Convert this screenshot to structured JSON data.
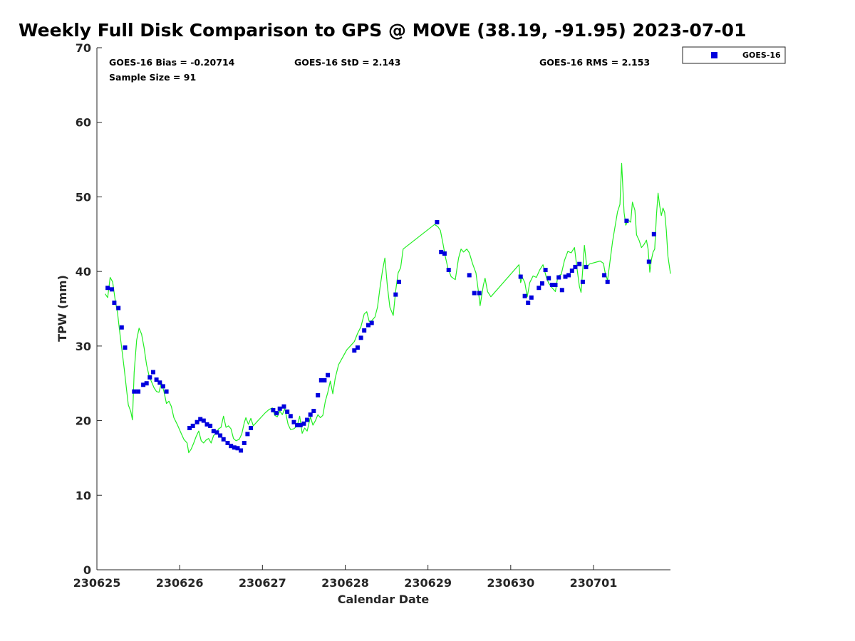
{
  "title": "Weekly Full Disk Comparison to GPS @ MOVE (38.19, -91.95) 2023-07-01",
  "stats": {
    "bias": "GOES-16 Bias = -0.20714",
    "std": "GOES-16 StD = 2.143",
    "rms": "GOES-16 RMS = 2.153",
    "sample": "Sample Size = 91"
  },
  "legend": {
    "label": "GOES-16"
  },
  "colors": {
    "goes": "#0000dd",
    "gps": "#22ee22",
    "axis": "#262626"
  },
  "chart_data": {
    "type": "scatter",
    "xlabel": "Calendar Date",
    "ylabel": "TPW (mm)",
    "xlim": [
      0,
      6.93
    ],
    "ylim": [
      0,
      70
    ],
    "x_tick_values": [
      0,
      1,
      2,
      3,
      4,
      5,
      6
    ],
    "x_tick_labels": [
      "230625",
      "230626",
      "230627",
      "230628",
      "230629",
      "230630",
      "230701"
    ],
    "y_ticks": [
      0,
      10,
      20,
      30,
      40,
      50,
      60,
      70
    ],
    "grid": false,
    "legend_position": "top-right",
    "series": [
      {
        "name": "GOES-16",
        "style": "markers",
        "points": [
          [
            0.13,
            37.8
          ],
          [
            0.18,
            37.6
          ],
          [
            0.21,
            35.8
          ],
          [
            0.26,
            35.1
          ],
          [
            0.3,
            32.5
          ],
          [
            0.34,
            29.8
          ],
          [
            0.45,
            23.9
          ],
          [
            0.5,
            23.9
          ],
          [
            0.56,
            24.8
          ],
          [
            0.6,
            25.0
          ],
          [
            0.64,
            25.8
          ],
          [
            0.68,
            26.5
          ],
          [
            0.72,
            25.5
          ],
          [
            0.76,
            25.1
          ],
          [
            0.8,
            24.6
          ],
          [
            0.84,
            23.9
          ],
          [
            1.12,
            19.0
          ],
          [
            1.16,
            19.3
          ],
          [
            1.21,
            19.8
          ],
          [
            1.25,
            20.2
          ],
          [
            1.29,
            20.0
          ],
          [
            1.33,
            19.5
          ],
          [
            1.37,
            19.3
          ],
          [
            1.41,
            18.6
          ],
          [
            1.45,
            18.4
          ],
          [
            1.49,
            18.0
          ],
          [
            1.53,
            17.5
          ],
          [
            1.58,
            17.0
          ],
          [
            1.62,
            16.6
          ],
          [
            1.66,
            16.4
          ],
          [
            1.7,
            16.3
          ],
          [
            1.74,
            16.0
          ],
          [
            1.78,
            17.0
          ],
          [
            1.82,
            18.2
          ],
          [
            1.86,
            19.0
          ],
          [
            2.13,
            21.4
          ],
          [
            2.17,
            21.0
          ],
          [
            2.21,
            21.6
          ],
          [
            2.26,
            21.9
          ],
          [
            2.3,
            21.2
          ],
          [
            2.34,
            20.6
          ],
          [
            2.38,
            19.8
          ],
          [
            2.42,
            19.4
          ],
          [
            2.46,
            19.4
          ],
          [
            2.5,
            19.6
          ],
          [
            2.54,
            20.1
          ],
          [
            2.58,
            20.8
          ],
          [
            2.62,
            21.3
          ],
          [
            2.67,
            23.4
          ],
          [
            2.71,
            25.4
          ],
          [
            2.75,
            25.4
          ],
          [
            2.79,
            26.1
          ],
          [
            3.11,
            29.4
          ],
          [
            3.15,
            29.8
          ],
          [
            3.19,
            31.1
          ],
          [
            3.23,
            32.1
          ],
          [
            3.28,
            32.8
          ],
          [
            3.32,
            33.1
          ],
          [
            3.61,
            36.9
          ],
          [
            3.65,
            38.6
          ],
          [
            4.11,
            46.6
          ],
          [
            4.16,
            42.6
          ],
          [
            4.2,
            42.4
          ],
          [
            4.25,
            40.2
          ],
          [
            4.5,
            39.5
          ],
          [
            4.56,
            37.1
          ],
          [
            4.62,
            37.1
          ],
          [
            5.12,
            39.3
          ],
          [
            5.17,
            36.7
          ],
          [
            5.21,
            35.8
          ],
          [
            5.25,
            36.5
          ],
          [
            5.34,
            37.8
          ],
          [
            5.38,
            38.4
          ],
          [
            5.42,
            40.2
          ],
          [
            5.46,
            39.1
          ],
          [
            5.5,
            38.2
          ],
          [
            5.54,
            38.2
          ],
          [
            5.58,
            39.2
          ],
          [
            5.62,
            37.5
          ],
          [
            5.66,
            39.3
          ],
          [
            5.7,
            39.5
          ],
          [
            5.74,
            40.1
          ],
          [
            5.78,
            40.6
          ],
          [
            5.83,
            41.0
          ],
          [
            5.87,
            38.6
          ],
          [
            5.91,
            40.6
          ],
          [
            6.13,
            39.5
          ],
          [
            6.17,
            38.6
          ],
          [
            6.4,
            46.8
          ],
          [
            6.67,
            41.3
          ],
          [
            6.73,
            45.0
          ]
        ]
      },
      {
        "name": "",
        "style": "line",
        "points": [
          [
            0.1,
            37.0
          ],
          [
            0.13,
            36.5
          ],
          [
            0.16,
            39.2
          ],
          [
            0.19,
            38.6
          ],
          [
            0.22,
            36.2
          ],
          [
            0.25,
            34.4
          ],
          [
            0.28,
            31.5
          ],
          [
            0.31,
            28.8
          ],
          [
            0.33,
            27.0
          ],
          [
            0.36,
            24.0
          ],
          [
            0.38,
            22.1
          ],
          [
            0.41,
            21.2
          ],
          [
            0.43,
            20.1
          ],
          [
            0.45,
            26.5
          ],
          [
            0.48,
            30.8
          ],
          [
            0.51,
            32.4
          ],
          [
            0.54,
            31.6
          ],
          [
            0.57,
            29.8
          ],
          [
            0.6,
            27.5
          ],
          [
            0.63,
            26.0
          ],
          [
            0.66,
            25.2
          ],
          [
            0.69,
            24.4
          ],
          [
            0.72,
            23.9
          ],
          [
            0.75,
            23.8
          ],
          [
            0.78,
            25.1
          ],
          [
            0.81,
            23.9
          ],
          [
            0.84,
            22.3
          ],
          [
            0.87,
            22.6
          ],
          [
            0.9,
            21.9
          ],
          [
            0.93,
            20.4
          ],
          [
            0.97,
            19.5
          ],
          [
            1.01,
            18.5
          ],
          [
            1.05,
            17.5
          ],
          [
            1.09,
            17.0
          ],
          [
            1.11,
            15.7
          ],
          [
            1.14,
            16.2
          ],
          [
            1.17,
            17.0
          ],
          [
            1.2,
            17.9
          ],
          [
            1.23,
            18.6
          ],
          [
            1.26,
            17.3
          ],
          [
            1.29,
            17.0
          ],
          [
            1.32,
            17.4
          ],
          [
            1.35,
            17.6
          ],
          [
            1.38,
            17.0
          ],
          [
            1.41,
            18.0
          ],
          [
            1.44,
            18.3
          ],
          [
            1.47,
            18.9
          ],
          [
            1.5,
            19.1
          ],
          [
            1.53,
            20.6
          ],
          [
            1.56,
            19.1
          ],
          [
            1.59,
            19.3
          ],
          [
            1.62,
            18.9
          ],
          [
            1.65,
            17.6
          ],
          [
            1.68,
            17.3
          ],
          [
            1.72,
            17.5
          ],
          [
            1.75,
            18.2
          ],
          [
            1.78,
            19.7
          ],
          [
            1.8,
            20.4
          ],
          [
            1.83,
            19.5
          ],
          [
            1.86,
            20.3
          ],
          [
            1.89,
            19.3
          ],
          [
            1.93,
            19.8
          ],
          [
            1.98,
            20.4
          ],
          [
            2.03,
            21.0
          ],
          [
            2.08,
            21.5
          ],
          [
            2.12,
            21.7
          ],
          [
            2.15,
            20.7
          ],
          [
            2.18,
            20.5
          ],
          [
            2.21,
            21.3
          ],
          [
            2.24,
            20.8
          ],
          [
            2.27,
            21.6
          ],
          [
            2.31,
            19.5
          ],
          [
            2.34,
            18.8
          ],
          [
            2.38,
            18.9
          ],
          [
            2.42,
            19.3
          ],
          [
            2.45,
            20.6
          ],
          [
            2.48,
            18.3
          ],
          [
            2.51,
            19.0
          ],
          [
            2.54,
            18.6
          ],
          [
            2.58,
            20.5
          ],
          [
            2.61,
            19.4
          ],
          [
            2.64,
            20.0
          ],
          [
            2.67,
            20.8
          ],
          [
            2.7,
            20.4
          ],
          [
            2.73,
            20.7
          ],
          [
            2.76,
            22.6
          ],
          [
            2.79,
            23.8
          ],
          [
            2.82,
            25.3
          ],
          [
            2.85,
            23.6
          ],
          [
            2.88,
            25.7
          ],
          [
            2.92,
            27.5
          ],
          [
            2.97,
            28.5
          ],
          [
            3.02,
            29.5
          ],
          [
            3.07,
            30.1
          ],
          [
            3.11,
            30.6
          ],
          [
            3.15,
            31.7
          ],
          [
            3.19,
            32.6
          ],
          [
            3.23,
            34.3
          ],
          [
            3.26,
            34.6
          ],
          [
            3.29,
            33.3
          ],
          [
            3.32,
            33.4
          ],
          [
            3.36,
            33.9
          ],
          [
            3.39,
            35.2
          ],
          [
            3.42,
            37.8
          ],
          [
            3.45,
            40.1
          ],
          [
            3.48,
            41.8
          ],
          [
            3.51,
            38.0
          ],
          [
            3.54,
            35.2
          ],
          [
            3.58,
            34.1
          ],
          [
            3.61,
            37.4
          ],
          [
            3.64,
            39.8
          ],
          [
            3.67,
            40.5
          ],
          [
            3.7,
            43.0
          ],
          [
            4.08,
            46.3
          ],
          [
            4.12,
            46.0
          ],
          [
            4.15,
            45.5
          ],
          [
            4.18,
            43.8
          ],
          [
            4.21,
            42.0
          ],
          [
            4.24,
            40.5
          ],
          [
            4.28,
            39.3
          ],
          [
            4.33,
            38.9
          ],
          [
            4.37,
            41.8
          ],
          [
            4.4,
            43.0
          ],
          [
            4.43,
            42.6
          ],
          [
            4.47,
            43.0
          ],
          [
            4.5,
            42.5
          ],
          [
            4.54,
            41.0
          ],
          [
            4.58,
            39.8
          ],
          [
            4.61,
            37.3
          ],
          [
            4.63,
            35.4
          ],
          [
            4.67,
            38.2
          ],
          [
            4.69,
            39.1
          ],
          [
            4.72,
            37.3
          ],
          [
            4.76,
            36.6
          ],
          [
            5.1,
            40.9
          ],
          [
            5.12,
            38.5
          ],
          [
            5.14,
            39.2
          ],
          [
            5.17,
            38.5
          ],
          [
            5.2,
            36.6
          ],
          [
            5.23,
            38.5
          ],
          [
            5.27,
            39.4
          ],
          [
            5.31,
            39.2
          ],
          [
            5.35,
            40.2
          ],
          [
            5.39,
            40.9
          ],
          [
            5.43,
            39.2
          ],
          [
            5.46,
            38.4
          ],
          [
            5.5,
            37.8
          ],
          [
            5.54,
            37.3
          ],
          [
            5.57,
            39.4
          ],
          [
            5.61,
            39.6
          ],
          [
            5.65,
            41.5
          ],
          [
            5.69,
            42.7
          ],
          [
            5.73,
            42.5
          ],
          [
            5.77,
            43.2
          ],
          [
            5.8,
            40.5
          ],
          [
            5.83,
            38.0
          ],
          [
            5.85,
            37.2
          ],
          [
            5.87,
            40.3
          ],
          [
            5.89,
            43.5
          ],
          [
            5.92,
            40.5
          ],
          [
            5.95,
            41.0
          ],
          [
            6.08,
            41.4
          ],
          [
            6.12,
            41.1
          ],
          [
            6.14,
            39.9
          ],
          [
            6.17,
            38.8
          ],
          [
            6.2,
            41.4
          ],
          [
            6.23,
            44.0
          ],
          [
            6.26,
            46.0
          ],
          [
            6.29,
            48.0
          ],
          [
            6.32,
            49.0
          ],
          [
            6.34,
            54.5
          ],
          [
            6.37,
            47.9
          ],
          [
            6.39,
            46.2
          ],
          [
            6.42,
            46.9
          ],
          [
            6.45,
            46.6
          ],
          [
            6.47,
            49.3
          ],
          [
            6.5,
            48.2
          ],
          [
            6.52,
            44.9
          ],
          [
            6.55,
            44.2
          ],
          [
            6.58,
            43.2
          ],
          [
            6.61,
            43.6
          ],
          [
            6.64,
            44.2
          ],
          [
            6.66,
            43.0
          ],
          [
            6.68,
            39.9
          ],
          [
            6.7,
            41.6
          ],
          [
            6.72,
            42.6
          ],
          [
            6.74,
            43.0
          ],
          [
            6.76,
            47.5
          ],
          [
            6.78,
            50.5
          ],
          [
            6.8,
            48.8
          ],
          [
            6.82,
            47.5
          ],
          [
            6.84,
            48.5
          ],
          [
            6.86,
            47.9
          ],
          [
            6.88,
            45.5
          ],
          [
            6.9,
            42.0
          ],
          [
            6.93,
            39.7
          ]
        ]
      }
    ]
  }
}
